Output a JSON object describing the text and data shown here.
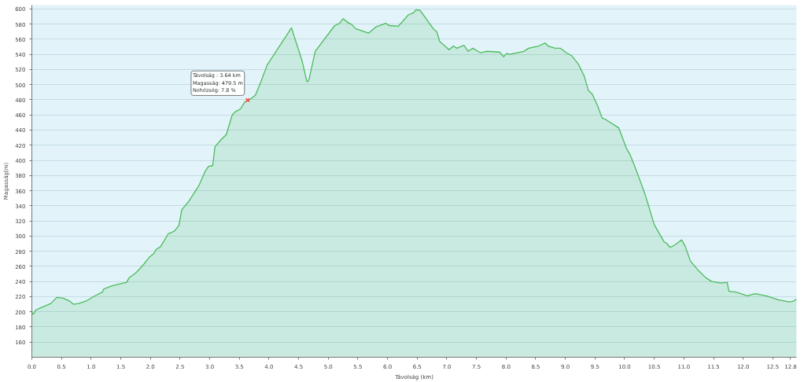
{
  "chart_data": {
    "type": "area",
    "xlabel": "Távolság (km)",
    "ylabel": "Magasság(m)",
    "color": "#4cbb5c",
    "x": [
      0,
      0.01,
      0.04,
      0.06,
      0.14,
      0.32,
      0.42,
      0.53,
      0.64,
      0.7,
      0.79,
      0.91,
      1.06,
      1.19,
      1.21,
      1.34,
      1.49,
      1.6,
      1.64,
      1.75,
      1.81,
      1.89,
      1.98,
      2.06,
      2.09,
      2.17,
      2.3,
      2.36,
      2.41,
      2.48,
      2.53,
      2.64,
      2.82,
      2.92,
      2.98,
      3.05,
      3.09,
      3.2,
      3.28,
      3.38,
      3.43,
      3.52,
      3.59,
      3.67,
      3.77,
      3.86,
      3.97,
      4.38,
      4.56,
      4.64,
      4.67,
      4.78,
      5.11,
      5.19,
      5.25,
      5.35,
      5.39,
      5.46,
      5.68,
      5.8,
      5.97,
      6.03,
      6.18,
      6.35,
      6.44,
      6.48,
      6.55,
      6.78,
      6.83,
      6.88,
      7.04,
      7.11,
      7.17,
      7.29,
      7.36,
      7.44,
      7.57,
      7.67,
      7.89,
      7.96,
      8.01,
      8.06,
      8.3,
      8.38,
      8.55,
      8.66,
      8.71,
      8.83,
      8.92,
      9.02,
      9.11,
      9.22,
      9.32,
      9.39,
      9.45,
      9.54,
      9.62,
      9.68,
      9.9,
      10.03,
      10.09,
      10.22,
      10.35,
      10.5,
      10.67,
      10.7,
      10.77,
      10.86,
      10.96,
      11.02,
      11.11,
      11.24,
      11.37,
      11.47,
      11.63,
      11.73,
      11.76,
      11.88,
      12.07,
      12.2,
      12.39,
      12.59,
      12.78,
      12.85,
      12.9
    ],
    "values": [
      201,
      197,
      198,
      202,
      205,
      211,
      219,
      218,
      214,
      210,
      211,
      214,
      221,
      226,
      230,
      234,
      237,
      239,
      245,
      251,
      256,
      263,
      272,
      277,
      282,
      286,
      303,
      305,
      307,
      314,
      335,
      345,
      367,
      385,
      392,
      393,
      418,
      428,
      434,
      460,
      464,
      468,
      477,
      480,
      486,
      503,
      526,
      575,
      531,
      504,
      505,
      544,
      578,
      581,
      587,
      581,
      580,
      574,
      568,
      576,
      581,
      578,
      577,
      592,
      595,
      599,
      598,
      573,
      570,
      557,
      546,
      551,
      548,
      552,
      544,
      548,
      542,
      544,
      543,
      537,
      541,
      540,
      544,
      548,
      551,
      555,
      551,
      548,
      548,
      542,
      538,
      527,
      511,
      492,
      488,
      473,
      456,
      454,
      443,
      416,
      408,
      382,
      354,
      315,
      292,
      291,
      285,
      289,
      295,
      287,
      267,
      255,
      245,
      240,
      238,
      239,
      227,
      226,
      221,
      224,
      221,
      216,
      213,
      214,
      217
    ],
    "xlim": [
      0,
      12.9
    ],
    "ylim": [
      140,
      605
    ],
    "xticks": [
      {
        "value": 0,
        "label": "0.0"
      },
      {
        "value": 0.5,
        "label": "0.5"
      },
      {
        "value": 1,
        "label": "1.0"
      },
      {
        "value": 1.5,
        "label": "1.5"
      },
      {
        "value": 2,
        "label": "2.0"
      },
      {
        "value": 2.5,
        "label": "2.5"
      },
      {
        "value": 3,
        "label": "3.0"
      },
      {
        "value": 3.5,
        "label": "3.5"
      },
      {
        "value": 4,
        "label": "4.0"
      },
      {
        "value": 4.5,
        "label": "4.5"
      },
      {
        "value": 5,
        "label": "5.0"
      },
      {
        "value": 5.5,
        "label": "5.5"
      },
      {
        "value": 6,
        "label": "6.0"
      },
      {
        "value": 6.5,
        "label": "6.5"
      },
      {
        "value": 7,
        "label": "7.0"
      },
      {
        "value": 7.5,
        "label": "7.5"
      },
      {
        "value": 8,
        "label": "8.0"
      },
      {
        "value": 8.5,
        "label": "8.5"
      },
      {
        "value": 9,
        "label": "9.0"
      },
      {
        "value": 9.5,
        "label": "9.5"
      },
      {
        "value": 10,
        "label": "10.0"
      },
      {
        "value": 10.5,
        "label": "10.5"
      },
      {
        "value": 11,
        "label": "11.0"
      },
      {
        "value": 11.5,
        "label": "11.5"
      },
      {
        "value": 12,
        "label": "12.0"
      },
      {
        "value": 12.5,
        "label": "12.5"
      },
      {
        "value": 12.8,
        "label": "12.8"
      }
    ],
    "yticks": [
      160,
      180,
      200,
      220,
      240,
      260,
      280,
      300,
      320,
      340,
      360,
      380,
      400,
      420,
      440,
      460,
      480,
      500,
      520,
      540,
      560,
      580,
      600
    ],
    "grid": "y",
    "annotations": [
      {
        "text": "Távolság : 3.64 km\nMagasság: 479.5 m\nNehézség: 7.8 %",
        "x": 3.64,
        "y": 479.5
      }
    ]
  }
}
